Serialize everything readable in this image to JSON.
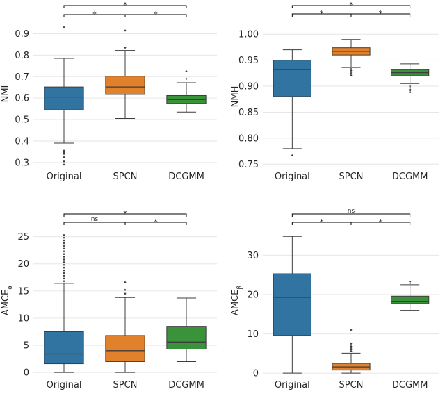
{
  "colors": {
    "Original": "#3274a1",
    "SPCN": "#e1812c",
    "DCGMM": "#3a923a"
  },
  "chart_data": [
    {
      "type": "box",
      "title": "",
      "xlabel": "",
      "ylabel": "NMI",
      "categories": [
        "Original",
        "SPCN",
        "DCGMM"
      ],
      "ylim": [
        0.28,
        0.96
      ],
      "yticks": [
        0.3,
        0.4,
        0.5,
        0.6,
        0.7,
        0.8,
        0.9
      ],
      "ytick_labels": [
        "0.3",
        "0.4",
        "0.5",
        "0.6",
        "0.7",
        "0.8",
        "0.9"
      ],
      "boxes": [
        {
          "name": "Original",
          "whislo": 0.39,
          "q1": 0.545,
          "med": 0.605,
          "q3": 0.652,
          "whishi": 0.785,
          "fliers": [
            0.29,
            0.305,
            0.325,
            0.34,
            0.345,
            0.35,
            0.355,
            0.93
          ]
        },
        {
          "name": "SPCN",
          "whislo": 0.505,
          "q1": 0.617,
          "med": 0.652,
          "q3": 0.702,
          "whishi": 0.822,
          "fliers": [
            0.835,
            0.915
          ]
        },
        {
          "name": "DCGMM",
          "whislo": 0.535,
          "q1": 0.575,
          "med": 0.593,
          "q3": 0.612,
          "whishi": 0.672,
          "fliers": [
            0.69,
            0.725
          ]
        }
      ],
      "annotations": [
        {
          "from": 0,
          "to": 1,
          "level": 0,
          "label": "*"
        },
        {
          "from": 1,
          "to": 2,
          "level": 0,
          "label": "*"
        },
        {
          "from": 0,
          "to": 2,
          "level": 1,
          "label": "*"
        }
      ]
    },
    {
      "type": "box",
      "title": "",
      "xlabel": "",
      "ylabel": "NMH",
      "categories": [
        "Original",
        "SPCN",
        "DCGMM"
      ],
      "ylim": [
        0.745,
        1.015
      ],
      "yticks": [
        0.75,
        0.8,
        0.85,
        0.9,
        0.95,
        1.0
      ],
      "ytick_labels": [
        "0.75",
        "0.80",
        "0.85",
        "0.90",
        "0.95",
        "1.00"
      ],
      "boxes": [
        {
          "name": "Original",
          "whislo": 0.78,
          "q1": 0.88,
          "med": 0.932,
          "q3": 0.95,
          "whishi": 0.97,
          "fliers": [
            0.767
          ]
        },
        {
          "name": "SPCN",
          "whislo": 0.936,
          "q1": 0.96,
          "med": 0.967,
          "q3": 0.974,
          "whishi": 0.99,
          "fliers": [
            0.933,
            0.93,
            0.927,
            0.924,
            0.921
          ]
        },
        {
          "name": "DCGMM",
          "whislo": 0.905,
          "q1": 0.92,
          "med": 0.926,
          "q3": 0.932,
          "whishi": 0.943,
          "fliers": [
            0.9,
            0.897,
            0.894,
            0.891,
            0.888
          ]
        }
      ],
      "annotations": [
        {
          "from": 0,
          "to": 1,
          "level": 0,
          "label": "*"
        },
        {
          "from": 1,
          "to": 2,
          "level": 0,
          "label": "*"
        },
        {
          "from": 0,
          "to": 2,
          "level": 1,
          "label": "*"
        }
      ]
    },
    {
      "type": "box",
      "title": "",
      "xlabel": "",
      "ylabel": "AMCE",
      "ylabel_sub": "α",
      "categories": [
        "Original",
        "SPCN",
        "DCGMM"
      ],
      "ylim": [
        -0.5,
        27
      ],
      "yticks": [
        0,
        5,
        10,
        15,
        20,
        25
      ],
      "ytick_labels": [
        "0",
        "5",
        "10",
        "15",
        "20",
        "25"
      ],
      "boxes": [
        {
          "name": "Original",
          "whislo": 0.0,
          "q1": 1.6,
          "med": 3.4,
          "q3": 7.5,
          "whishi": 16.4,
          "fliers": [
            16.8,
            17.3,
            17.8,
            18.3,
            18.8,
            19.3,
            19.8,
            20.3,
            20.8,
            21.3,
            21.8,
            22.3,
            22.8,
            23.3,
            23.8,
            24.3,
            24.8,
            25.3
          ]
        },
        {
          "name": "SPCN",
          "whislo": 0.0,
          "q1": 2.0,
          "med": 4.0,
          "q3": 6.8,
          "whishi": 13.8,
          "fliers": [
            14.5,
            15.2,
            16.6
          ]
        },
        {
          "name": "DCGMM",
          "whislo": 2.0,
          "q1": 4.3,
          "med": 5.6,
          "q3": 8.5,
          "whishi": 13.7,
          "fliers": []
        }
      ],
      "annotations": [
        {
          "from": 0,
          "to": 1,
          "level": 0,
          "label": "ns"
        },
        {
          "from": 1,
          "to": 2,
          "level": 0,
          "label": "*"
        },
        {
          "from": 0,
          "to": 2,
          "level": 1,
          "label": "*"
        }
      ]
    },
    {
      "type": "box",
      "title": "",
      "xlabel": "",
      "ylabel": "AMCE",
      "ylabel_sub": "β",
      "categories": [
        "Original",
        "SPCN",
        "DCGMM"
      ],
      "ylim": [
        -0.5,
        37.5
      ],
      "yticks": [
        0,
        10,
        20,
        30
      ],
      "ytick_labels": [
        "0",
        "10",
        "20",
        "30"
      ],
      "boxes": [
        {
          "name": "Original",
          "whislo": 0.0,
          "q1": 9.6,
          "med": 19.3,
          "q3": 25.3,
          "whishi": 34.8,
          "fliers": []
        },
        {
          "name": "SPCN",
          "whislo": 0.0,
          "q1": 0.8,
          "med": 1.6,
          "q3": 2.5,
          "whishi": 5.1,
          "fliers": [
            5.6,
            6.0,
            6.4,
            6.8,
            7.2,
            7.6,
            11.0
          ]
        },
        {
          "name": "DCGMM",
          "whislo": 16.0,
          "q1": 17.7,
          "med": 18.3,
          "q3": 19.6,
          "whishi": 22.5,
          "fliers": [
            22.9,
            23.3
          ]
        }
      ],
      "annotations": [
        {
          "from": 0,
          "to": 1,
          "level": 0,
          "label": "*"
        },
        {
          "from": 1,
          "to": 2,
          "level": 0,
          "label": "*"
        },
        {
          "from": 0,
          "to": 2,
          "level": 1,
          "label": "ns"
        }
      ]
    }
  ]
}
